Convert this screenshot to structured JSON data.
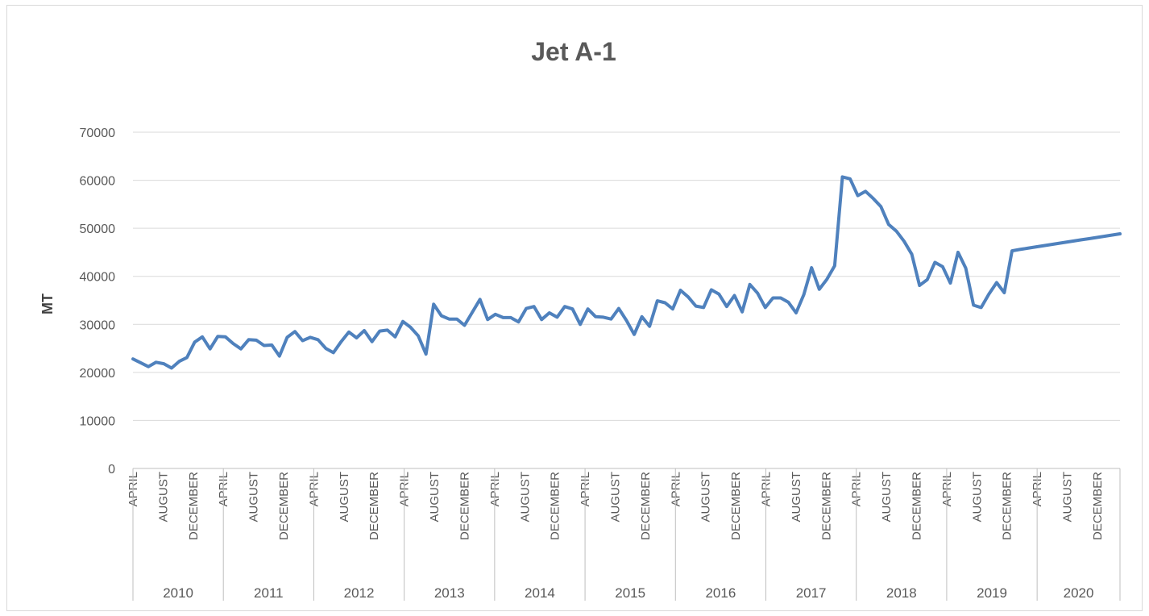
{
  "chart_data": {
    "type": "line",
    "title": "Jet A-1",
    "xlabel": "",
    "ylabel": "MT",
    "ylim": [
      0,
      70000
    ],
    "yticks": [
      "0",
      "10000",
      "20000",
      "30000",
      "40000",
      "50000",
      "60000",
      "70000"
    ],
    "grid": "horizontal",
    "legend": "none",
    "years": [
      "2010",
      "2011",
      "2012",
      "2013",
      "2014",
      "2015",
      "2016",
      "2017",
      "2018",
      "2019",
      "2020"
    ],
    "month_ticks": [
      "APRIL",
      "AUGUST",
      "DECEMBER"
    ],
    "line_color": "#4f81bd",
    "series": [
      {
        "values": [
          22800,
          22000,
          21200,
          22100,
          21800,
          20900,
          22300,
          23100,
          26300,
          27400,
          24900,
          27500,
          27400,
          26000,
          24900,
          26800,
          26700,
          25600,
          25700,
          23400,
          27300,
          28500,
          26600,
          27300,
          26800,
          25000,
          24100,
          26400,
          28400,
          27200,
          28700,
          26400,
          28600,
          28800,
          27400,
          30600,
          29400,
          27600,
          23800,
          34200,
          31800,
          31100,
          31100,
          29800,
          32500,
          35200,
          31000,
          32100,
          31400,
          31400,
          30500,
          33300,
          33700,
          31000,
          32400,
          31500,
          33700,
          33200,
          30000,
          33200,
          31600,
          31500,
          31100,
          33300,
          30800,
          27900,
          31600,
          29600,
          34900,
          34500,
          33200,
          37100,
          35700,
          33800,
          33500,
          37200,
          36300,
          33700,
          36000,
          32600,
          38300,
          36500,
          33500,
          35500,
          35500,
          34600,
          32400,
          36200,
          41800,
          37300,
          39400,
          42200,
          60700,
          60300,
          56800,
          57700,
          56200,
          54500,
          50800,
          49400,
          47300,
          44600,
          38100,
          39300,
          42900,
          42000,
          38600,
          45000,
          41700,
          34000,
          33500,
          36300,
          38700,
          36600,
          45300,
          45600,
          45850,
          46100,
          46350,
          46600,
          46850,
          47100,
          47350,
          47600,
          47850,
          48100,
          48350,
          48600,
          48850
        ]
      }
    ]
  }
}
